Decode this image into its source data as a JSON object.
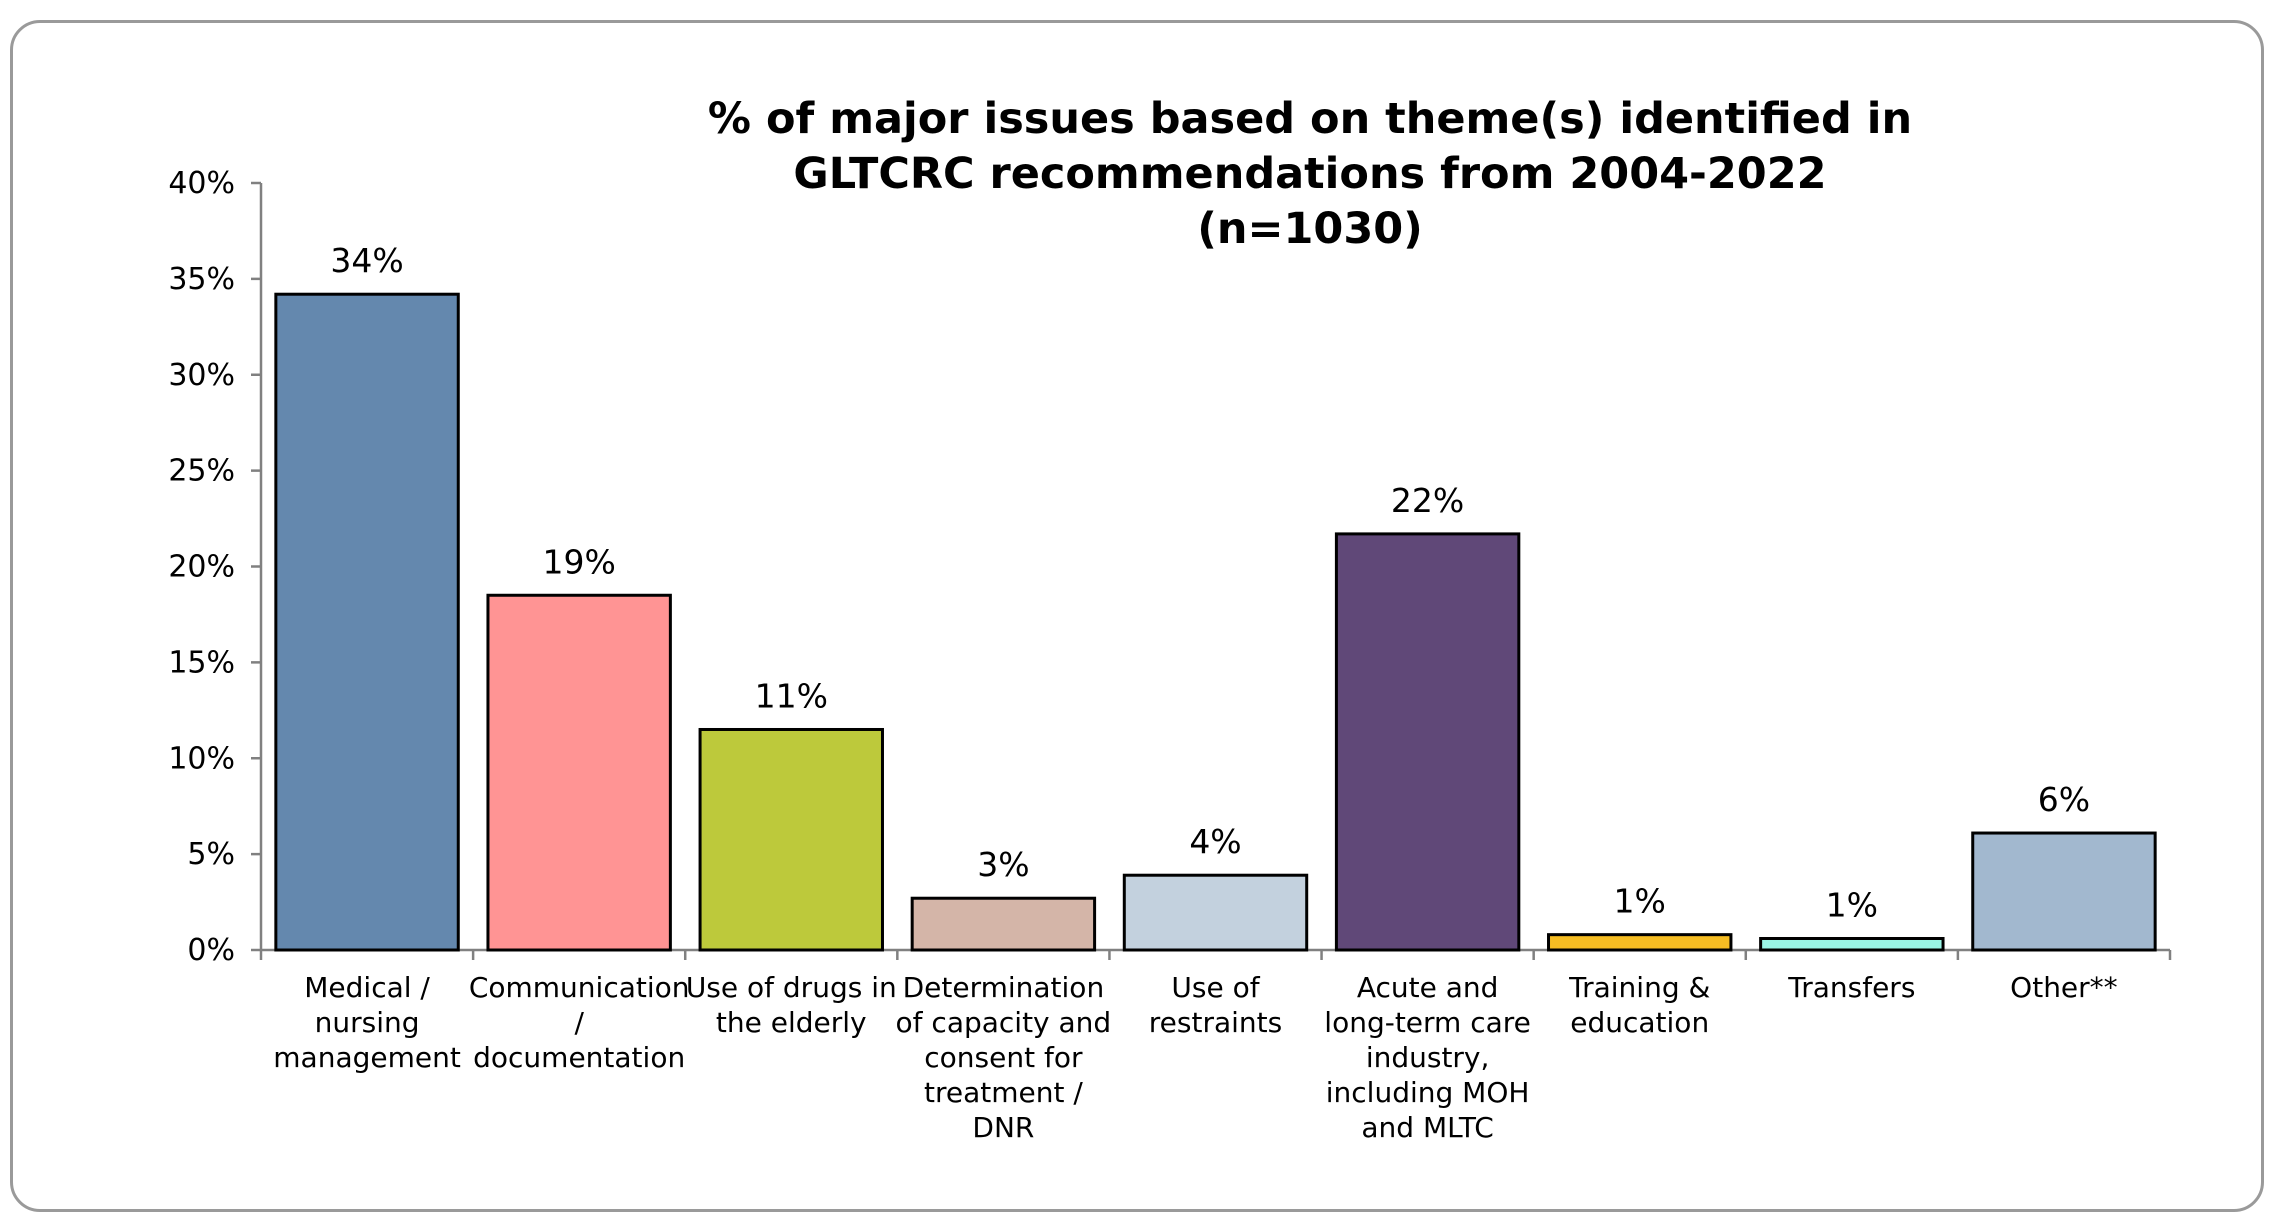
{
  "chart_data": {
    "type": "bar",
    "title": "% of major issues based on theme(s) identified in GLTCRC recommendations from 2004-2022 (n=1030)",
    "title_lines": [
      "% of major issues based on theme(s) identified in",
      "GLTCRC recommendations from 2004-2022",
      "(n=1030)"
    ],
    "xlabel": "",
    "ylabel": "",
    "ylim": [
      0,
      40
    ],
    "yticks": [
      0,
      5,
      10,
      15,
      20,
      25,
      30,
      35,
      40
    ],
    "ytick_labels": [
      "0%",
      "5%",
      "10%",
      "15%",
      "20%",
      "25%",
      "30%",
      "35%",
      "40%"
    ],
    "grid": false,
    "legend": "none",
    "categories": [
      "Medical / nursing management",
      "Communication / documentation",
      "Use of drugs in the elderly",
      "Determination of capacity and consent for treatment / DNR",
      "Use of restraints",
      "Acute and long-term care industry, including MOH and MLTC",
      "Training & education",
      "Transfers",
      "Other**"
    ],
    "category_label_lines": [
      [
        "Medical /",
        "nursing",
        "management"
      ],
      [
        "Communication",
        "/",
        "documentation"
      ],
      [
        "Use of drugs in",
        "the elderly"
      ],
      [
        "Determination",
        "of capacity and",
        "consent for",
        "treatment /",
        "DNR"
      ],
      [
        "Use of",
        "restraints"
      ],
      [
        "Acute and",
        "long-term care",
        "industry,",
        "including MOH",
        "and MLTC"
      ],
      [
        "Training &",
        "education"
      ],
      [
        "Transfers"
      ],
      [
        "Other**"
      ]
    ],
    "values": [
      34.2,
      18.5,
      11.5,
      2.7,
      3.9,
      21.7,
      0.8,
      0.6,
      6.1
    ],
    "data_labels": [
      "34%",
      "19%",
      "11%",
      "3%",
      "4%",
      "22%",
      "1%",
      "1%",
      "6%"
    ],
    "colors": [
      "#6488ae",
      "#ff9494",
      "#bdc93b",
      "#d4b5a8",
      "#c3d1de",
      "#604878",
      "#f6bd23",
      "#9af5e5",
      "#a2b8cf"
    ]
  }
}
